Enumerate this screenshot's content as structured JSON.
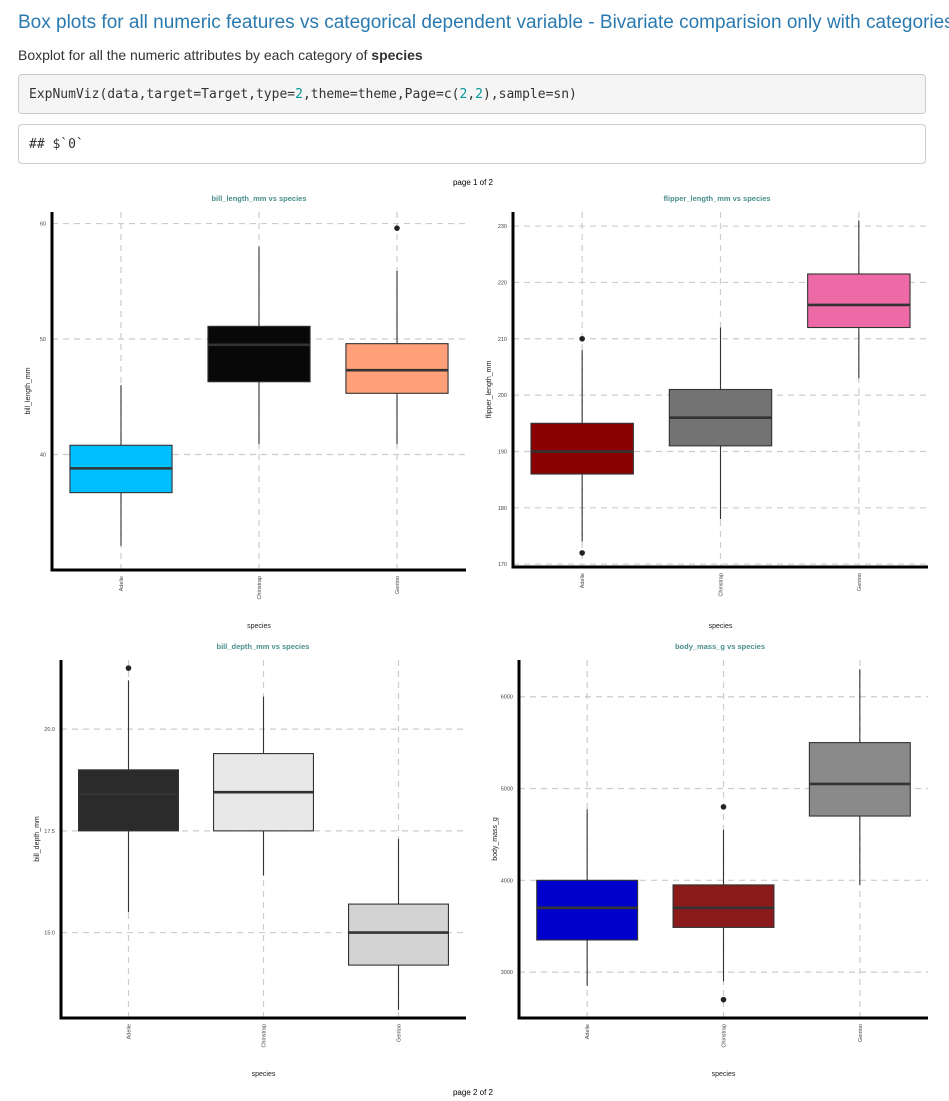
{
  "page": {
    "title": "Box plots for all numeric features vs categorical dependent variable - Bivariate comparision only with categories",
    "subtitle_prefix": "Boxplot for all the numeric attributes by each category of ",
    "subtitle_bold": "species",
    "code": {
      "fn": "ExpNumViz(data,target=Target,type=",
      "n1": "2",
      "mid": ",theme=theme,Page=c(",
      "n2": "2",
      "comma": ",",
      "n3": "2",
      "tail": "),sample=sn)"
    },
    "output": "## $`0`",
    "page_label_top": "page 1 of 2",
    "page_label_bottom": "page 2 of 2"
  },
  "chart_data": [
    {
      "type": "box",
      "title": "bill_length_mm vs species",
      "xlabel": "species",
      "ylabel": "bill_length_mm",
      "categories": [
        "Adelie",
        "Chinstrap",
        "Gentoo"
      ],
      "ylim": [
        30,
        61
      ],
      "yticks": [
        40,
        50,
        60
      ],
      "boxes": [
        {
          "category": "Adelie",
          "min": 32.1,
          "q1": 36.7,
          "median": 38.8,
          "q3": 40.8,
          "max": 46.0,
          "outliers": [],
          "color": "#00BFFF"
        },
        {
          "category": "Chinstrap",
          "min": 40.9,
          "q1": 46.3,
          "median": 49.5,
          "q3": 51.1,
          "max": 58.0,
          "outliers": [],
          "color": "#080808"
        },
        {
          "category": "Gentoo",
          "min": 40.9,
          "q1": 45.3,
          "median": 47.3,
          "q3": 49.6,
          "max": 55.9,
          "outliers": [
            59.6
          ],
          "color": "#FFA07A"
        }
      ]
    },
    {
      "type": "box",
      "title": "flipper_length_mm vs species",
      "xlabel": "species",
      "ylabel": "flipper_length_mm",
      "categories": [
        "Adelie",
        "Chinstrap",
        "Gentoo"
      ],
      "ylim": [
        169.5,
        232.5
      ],
      "yticks": [
        170,
        180,
        190,
        200,
        210,
        220,
        230
      ],
      "boxes": [
        {
          "category": "Adelie",
          "min": 174,
          "q1": 186,
          "median": 190,
          "q3": 195,
          "max": 208,
          "outliers": [
            210,
            172
          ],
          "color": "#8B0000"
        },
        {
          "category": "Chinstrap",
          "min": 178,
          "q1": 191,
          "median": 196,
          "q3": 201,
          "max": 212,
          "outliers": [],
          "color": "#737373"
        },
        {
          "category": "Gentoo",
          "min": 203,
          "q1": 212,
          "median": 216,
          "q3": 221.5,
          "max": 231,
          "outliers": [],
          "color": "#EE6AA7"
        }
      ]
    },
    {
      "type": "box",
      "title": "bill_depth_mm vs species",
      "xlabel": "species",
      "ylabel": "bill_depth_mm",
      "categories": [
        "Adelie",
        "Chinstrap",
        "Gentoo"
      ],
      "ylim": [
        12.9,
        21.7
      ],
      "yticks": [
        15.0,
        17.5,
        20.0
      ],
      "ytick_labels": [
        "15.0",
        "17.5",
        "20.0"
      ],
      "boxes": [
        {
          "category": "Adelie",
          "min": 15.5,
          "q1": 17.5,
          "median": 18.4,
          "q3": 19.0,
          "max": 21.2,
          "outliers": [
            21.5
          ],
          "color": "#2B2B2B"
        },
        {
          "category": "Chinstrap",
          "min": 16.4,
          "q1": 17.5,
          "median": 18.45,
          "q3": 19.4,
          "max": 20.8,
          "outliers": [],
          "color": "#E8E8E8"
        },
        {
          "category": "Gentoo",
          "min": 13.1,
          "q1": 14.2,
          "median": 15.0,
          "q3": 15.7,
          "max": 17.3,
          "outliers": [],
          "color": "#D3D3D3"
        }
      ]
    },
    {
      "type": "box",
      "title": "body_mass_g vs species",
      "xlabel": "species",
      "ylabel": "body_mass_g",
      "categories": [
        "Adelie",
        "Chinstrap",
        "Gentoo"
      ],
      "ylim": [
        2500,
        6400
      ],
      "yticks": [
        3000,
        4000,
        5000,
        6000
      ],
      "boxes": [
        {
          "category": "Adelie",
          "min": 2850,
          "q1": 3350,
          "median": 3700,
          "q3": 4000,
          "max": 4775,
          "outliers": [],
          "color": "#0000CD"
        },
        {
          "category": "Chinstrap",
          "min": 2900,
          "q1": 3487,
          "median": 3700,
          "q3": 3950,
          "max": 4550,
          "outliers": [
            4800,
            2700
          ],
          "color": "#8B1A1A"
        },
        {
          "category": "Gentoo",
          "min": 3950,
          "q1": 4700,
          "median": 5050,
          "q3": 5500,
          "max": 6300,
          "outliers": [],
          "color": "#8A8A8A"
        }
      ]
    }
  ]
}
